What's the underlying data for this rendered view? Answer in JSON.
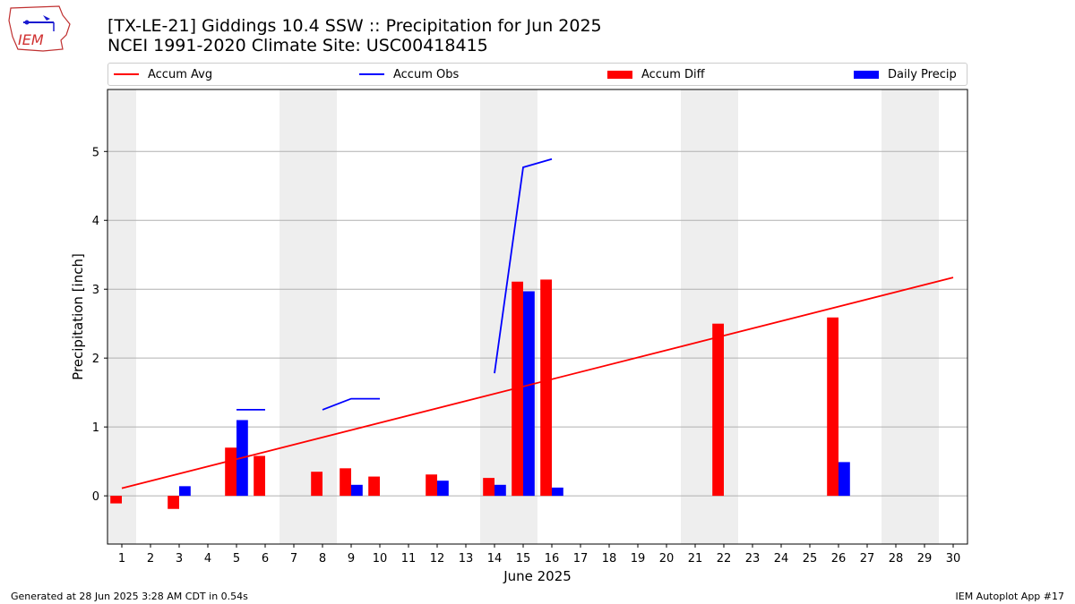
{
  "header": {
    "title_line1": "[TX-LE-21] Giddings 10.4 SSW :: Precipitation for Jun 2025",
    "title_line2": "NCEI 1991-2020 Climate Site: USC00418415"
  },
  "logo": {
    "text": "IEM"
  },
  "legend": [
    {
      "label": "Accum Avg",
      "kind": "line",
      "color": "#ff0000"
    },
    {
      "label": "Accum Obs",
      "kind": "line",
      "color": "#0000ff"
    },
    {
      "label": "Accum Diff",
      "kind": "bar",
      "color": "#ff0000"
    },
    {
      "label": "Daily Precip",
      "kind": "bar",
      "color": "#0000ff"
    }
  ],
  "footer": {
    "generated": "Generated at 28 Jun 2025 3:28 AM CDT in 0.54s",
    "app": "IEM Autoplot App #17"
  },
  "chart_data": {
    "type": "bar",
    "xlabel": "June 2025",
    "ylabel": "Precipitation [inch]",
    "xlim": [
      0.5,
      30.5
    ],
    "ylim": [
      -0.7,
      5.9
    ],
    "yticks": [
      0,
      1,
      2,
      3,
      4,
      5
    ],
    "days": [
      1,
      2,
      3,
      4,
      5,
      6,
      7,
      8,
      9,
      10,
      11,
      12,
      13,
      14,
      15,
      16,
      17,
      18,
      19,
      20,
      21,
      22,
      23,
      24,
      25,
      26,
      27,
      28,
      29,
      30
    ],
    "weekend_days": [
      1,
      7,
      8,
      14,
      15,
      21,
      22,
      28,
      29
    ],
    "grid": "horizontal",
    "legend_position": "top",
    "accum_avg": {
      "name": "Accum Avg",
      "color": "#ff0000",
      "x": [
        1,
        30
      ],
      "y": [
        0.11,
        3.17
      ]
    },
    "accum_obs_segments": [
      {
        "x": [
          5,
          6
        ],
        "y": [
          1.25,
          1.25
        ]
      },
      {
        "x": [
          8,
          9,
          10
        ],
        "y": [
          1.25,
          1.41,
          1.41
        ]
      },
      {
        "x": [
          14,
          15,
          16
        ],
        "y": [
          1.78,
          4.77,
          4.89
        ]
      }
    ],
    "accum_diff": {
      "name": "Accum Diff",
      "color": "#ff0000",
      "points": [
        [
          1,
          -0.11
        ],
        [
          3,
          -0.19
        ],
        [
          5,
          0.7
        ],
        [
          6,
          0.58
        ],
        [
          8,
          0.35
        ],
        [
          9,
          0.4
        ],
        [
          10,
          0.28
        ],
        [
          12,
          0.31
        ],
        [
          14,
          0.26
        ],
        [
          15,
          3.11
        ],
        [
          16,
          3.14
        ],
        [
          22,
          2.5
        ],
        [
          26,
          2.59
        ]
      ]
    },
    "daily_precip": {
      "name": "Daily Precip",
      "color": "#0000ff",
      "points": [
        [
          3,
          0.14
        ],
        [
          5,
          1.1
        ],
        [
          9,
          0.16
        ],
        [
          12,
          0.22
        ],
        [
          14,
          0.16
        ],
        [
          15,
          2.97
        ],
        [
          16,
          0.12
        ],
        [
          26,
          0.49
        ]
      ]
    }
  }
}
